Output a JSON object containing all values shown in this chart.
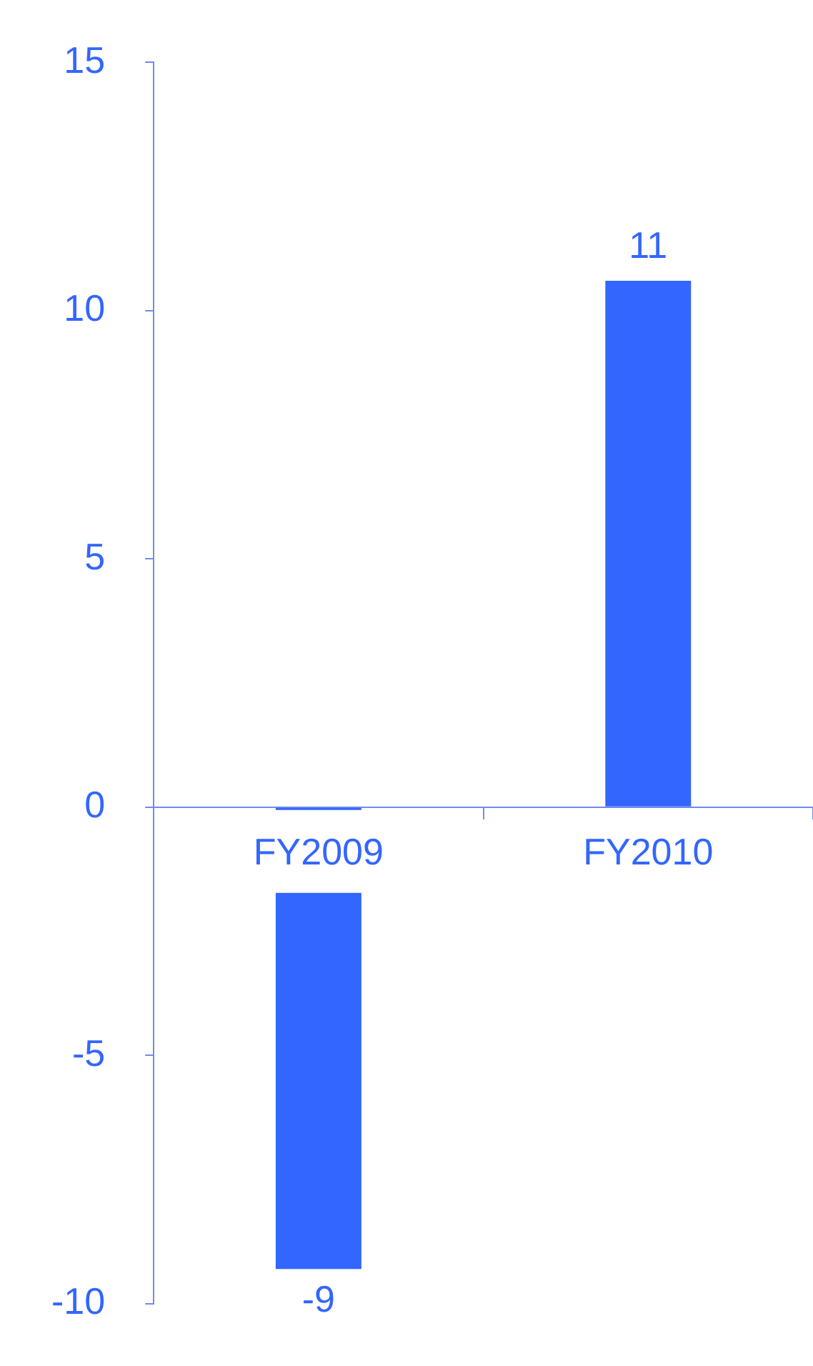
{
  "chart_data": {
    "type": "bar",
    "categories": [
      "FY2009",
      "FY2010"
    ],
    "values": [
      -9.3,
      10.6
    ],
    "value_labels": [
      "-9",
      "11"
    ],
    "color": "#3366ff",
    "ylim": [
      -10,
      15
    ],
    "yticks": [
      -10,
      -5,
      0,
      5,
      10,
      15
    ]
  }
}
